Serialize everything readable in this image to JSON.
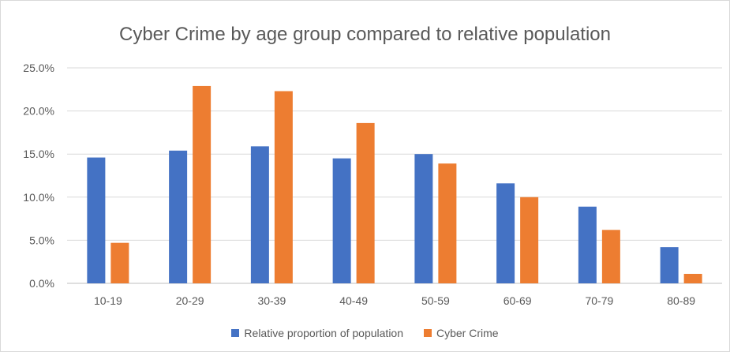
{
  "chart_data": {
    "type": "bar",
    "title": "Cyber Crime by age group compared to relative population",
    "xlabel": "",
    "ylabel": "",
    "categories": [
      "10-19",
      "20-29",
      "30-39",
      "40-49",
      "50-59",
      "60-69",
      "70-79",
      "80-89"
    ],
    "series": [
      {
        "name": "Relative proportion of population",
        "color": "#4472C4",
        "values": [
          14.6,
          15.4,
          15.9,
          14.5,
          15.0,
          11.6,
          8.9,
          4.2
        ]
      },
      {
        "name": "Cyber Crime",
        "color": "#ED7D31",
        "values": [
          4.7,
          22.9,
          22.3,
          18.6,
          13.9,
          10.0,
          6.2,
          1.1
        ]
      }
    ],
    "ylim": [
      0,
      25
    ],
    "yticks": [
      "0.0%",
      "5.0%",
      "10.0%",
      "15.0%",
      "20.0%",
      "25.0%"
    ],
    "grid": true,
    "legend_position": "bottom"
  }
}
